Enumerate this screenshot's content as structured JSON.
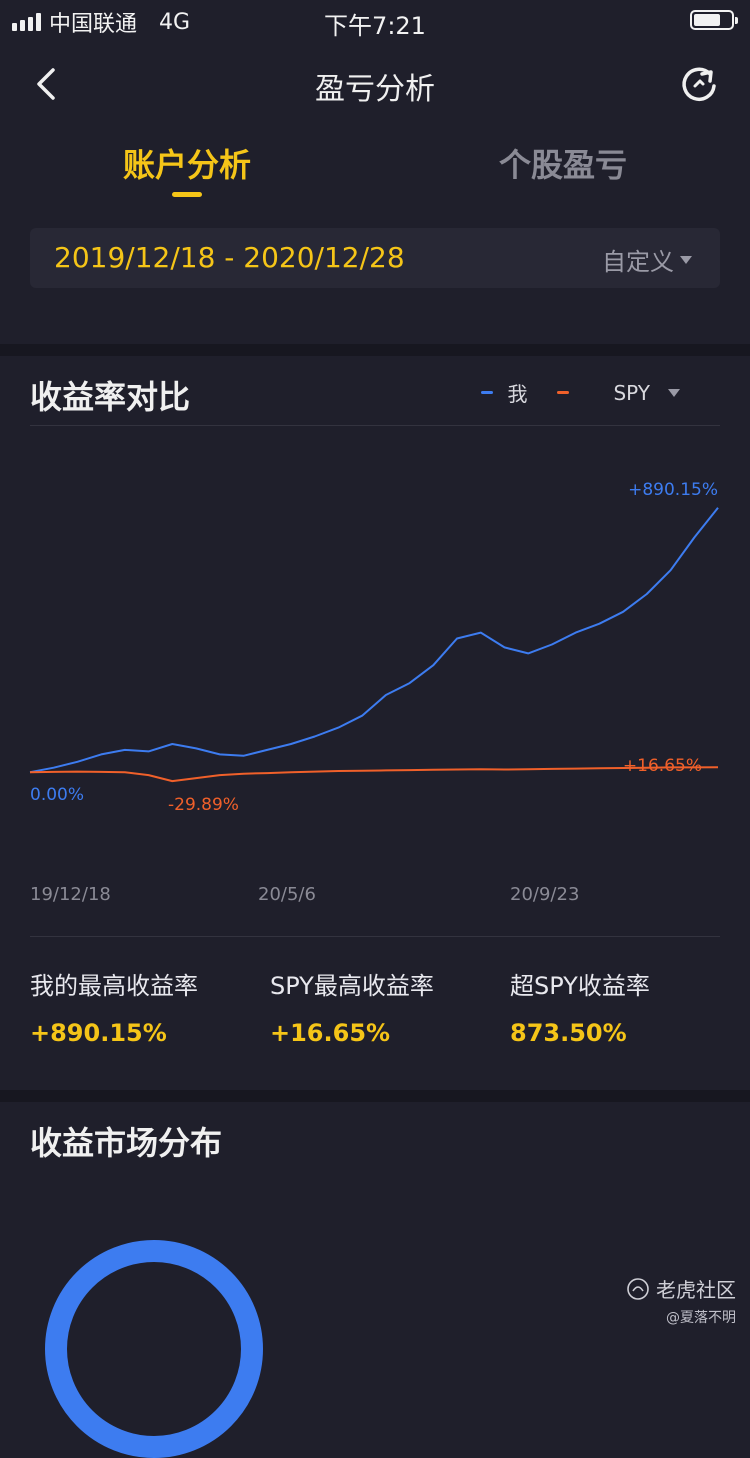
{
  "status_bar": {
    "carrier": "中国联通",
    "network": "4G",
    "time": "下午7:21"
  },
  "nav": {
    "title": "盈亏分析",
    "back_icon": "chevron-left-icon",
    "refresh_icon": "refresh-icon"
  },
  "tabs": [
    {
      "label": "账户分析",
      "active": true
    },
    {
      "label": "个股盈亏",
      "active": false
    }
  ],
  "date_filter": {
    "range": "2019/12/18 - 2020/12/28",
    "mode": "自定义"
  },
  "returns_section": {
    "title": "收益率对比",
    "legend": [
      {
        "label": "我",
        "color": "#3d7cf0"
      },
      {
        "label": "SPY",
        "color": "#f0602a"
      }
    ],
    "legend_dropdown_icon": "caret-down-icon"
  },
  "chart_data": {
    "type": "line",
    "x_ticks": [
      "19/12/18",
      "20/5/6",
      "20/9/23"
    ],
    "annotations": {
      "me_start": "0.00%",
      "me_end": "+890.15%",
      "spy_min": "-29.89%",
      "spy_end": "+16.65%"
    },
    "series": [
      {
        "name": "我",
        "color": "#3d7cf0",
        "values": [
          0,
          15,
          35,
          60,
          75,
          70,
          95,
          80,
          60,
          55,
          75,
          95,
          120,
          150,
          190,
          260,
          300,
          360,
          450,
          470,
          420,
          400,
          430,
          470,
          500,
          540,
          600,
          680,
          790,
          890.15
        ]
      },
      {
        "name": "SPY",
        "color": "#f0602a",
        "values": [
          0,
          1,
          2,
          1,
          0,
          -10,
          -29.89,
          -20,
          -10,
          -5,
          -3,
          0,
          2,
          4,
          5,
          6,
          7,
          8,
          9,
          10,
          9,
          10,
          11,
          12,
          13,
          14,
          15,
          16,
          16,
          16.65
        ]
      }
    ],
    "ylim": [
      -60,
      950
    ]
  },
  "stats": [
    {
      "label": "我的最高收益率",
      "value": "+890.15%"
    },
    {
      "label": "SPY最高收益率",
      "value": "+16.65%"
    },
    {
      "label": "超SPY收益率",
      "value": "873.50%"
    }
  ],
  "market_section": {
    "title": "收益市场分布"
  },
  "watermark": {
    "brand": "老虎社区",
    "user": "@夏落不明"
  }
}
